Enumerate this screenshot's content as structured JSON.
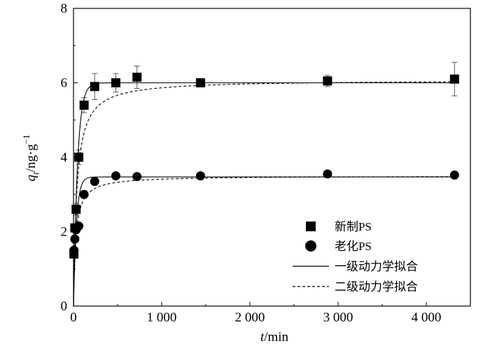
{
  "chart_data": {
    "type": "scatter",
    "xlabel_italic": "t",
    "xlabel_rest": "/min",
    "ylabel_italic": "q",
    "ylabel_sub": "t",
    "ylabel_rest": "/ng·g",
    "ylabel_sup": "−1",
    "xlim": [
      0,
      4500
    ],
    "ylim": [
      0,
      8
    ],
    "xticks": [
      0,
      1000,
      2000,
      3000,
      4000
    ],
    "xtick_labels": [
      "0",
      "1 000",
      "2 000",
      "3 000",
      "4 000"
    ],
    "yticks": [
      0,
      2,
      4,
      6,
      8
    ],
    "ytick_labels": [
      "0",
      "2",
      "4",
      "6",
      "8"
    ],
    "legend_position": "bottom-right",
    "series": [
      {
        "name": "新制PS",
        "marker": "square",
        "x": [
          5,
          15,
          30,
          60,
          120,
          240,
          480,
          720,
          1440,
          2880,
          4320
        ],
        "y": [
          1.4,
          2.1,
          2.6,
          4.0,
          5.4,
          5.9,
          6.0,
          6.15,
          6.0,
          6.05,
          6.1
        ],
        "err": [
          0.1,
          0.1,
          0.15,
          0.2,
          0.2,
          0.35,
          0.25,
          0.3,
          0.08,
          0.15,
          0.45
        ]
      },
      {
        "name": "老化PS",
        "marker": "circle",
        "x": [
          5,
          15,
          30,
          60,
          120,
          240,
          480,
          720,
          1440,
          2880,
          4320
        ],
        "y": [
          1.5,
          1.8,
          2.05,
          2.15,
          3.0,
          3.35,
          3.5,
          3.48,
          3.5,
          3.55,
          3.52
        ],
        "err": [
          0.05,
          0.05,
          0.05,
          0.08,
          0.1,
          0.1,
          0.08,
          0.08,
          0.05,
          0.05,
          0.1
        ]
      }
    ],
    "fits": [
      {
        "name": "一级动力学拟合",
        "style": "solid",
        "curves": [
          {
            "model": "pfo",
            "qe": 6.0,
            "k": 0.022
          },
          {
            "model": "pfo",
            "qe": 3.47,
            "k": 0.03
          }
        ]
      },
      {
        "name": "二级动力学拟合",
        "style": "dashed",
        "curves": [
          {
            "model": "pso",
            "qe": 6.08,
            "k": 0.0045
          },
          {
            "model": "pso",
            "qe": 3.5,
            "k": 0.011
          }
        ]
      }
    ]
  }
}
